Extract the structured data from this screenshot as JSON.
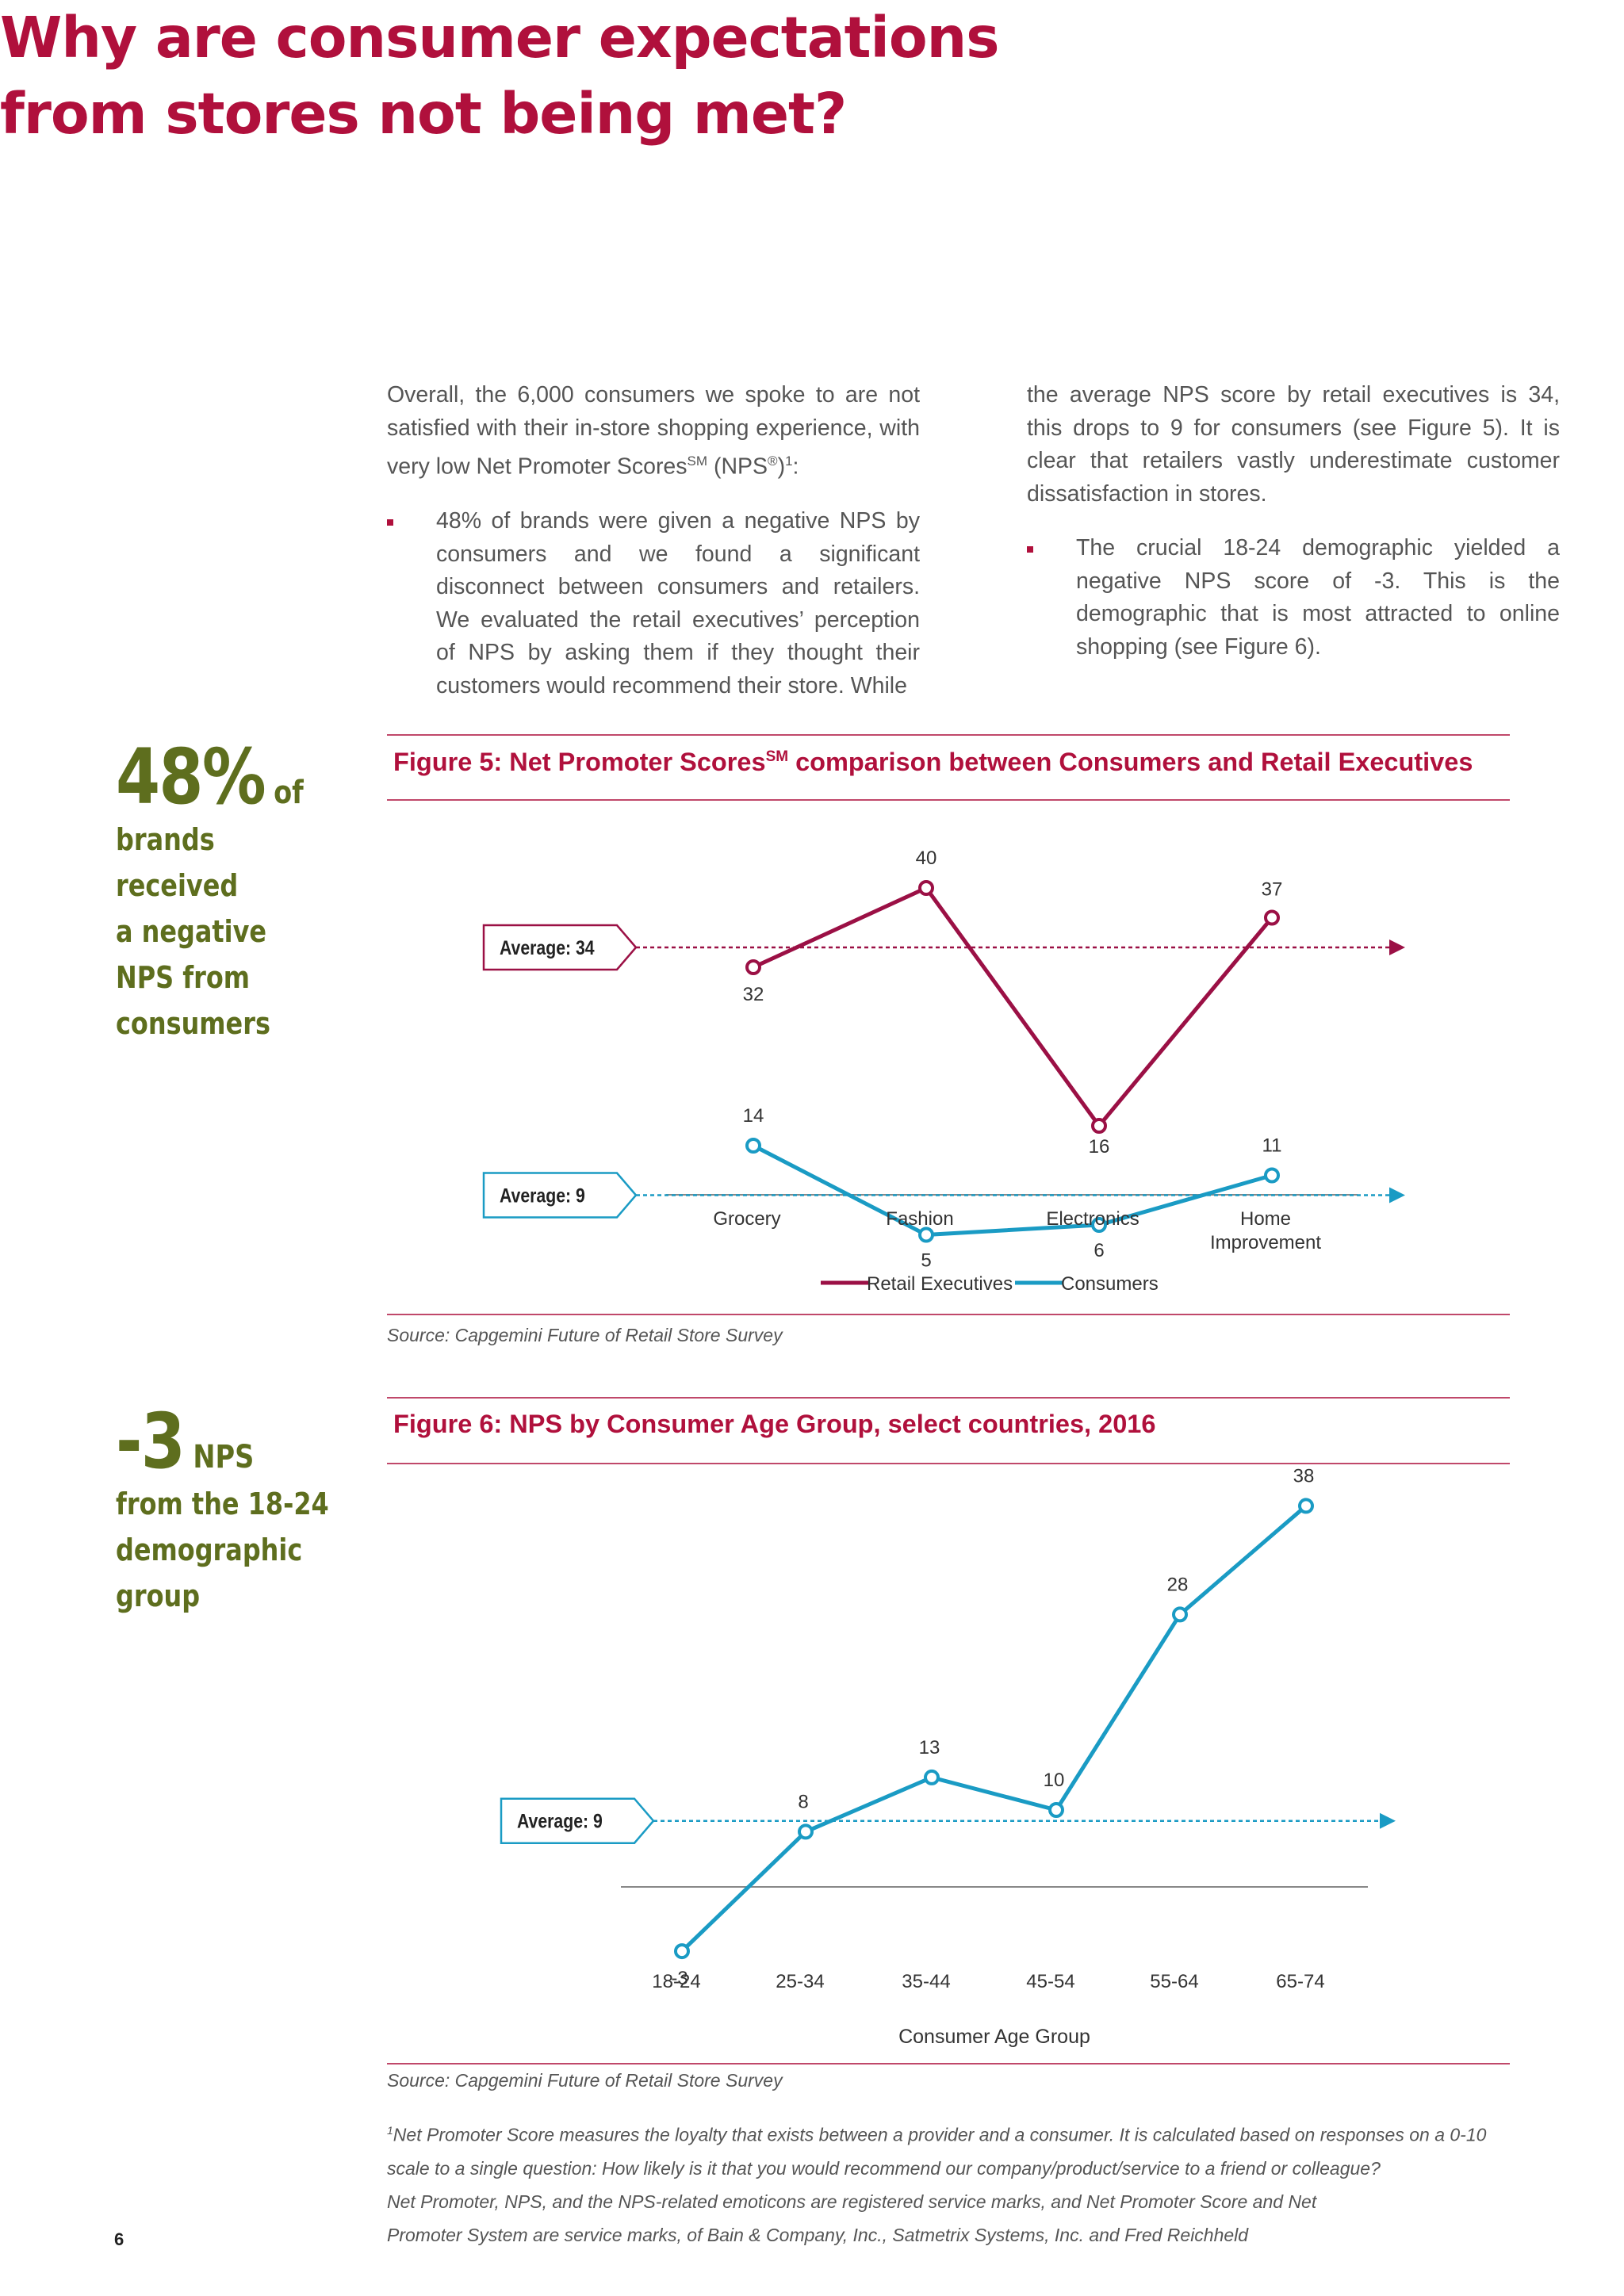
{
  "title": "Why are consumer expectations from stores not being met?",
  "col1": {
    "intro": "Overall, the 6,000 consumers we spoke to are not satisfied with their in-store shopping experience, with very low Net Promoter Scores",
    "sm": "SM",
    "nps": " (NPS",
    "reg": "®",
    "close": ")",
    "fn": "1",
    "colon": ":",
    "bullet1": "48% of brands were given a negative NPS by consumers and we found a significant disconnect between consumers and retailers. We evaluated the retail executives’ perception of NPS by asking them if they thought their customers would recommend their store. While"
  },
  "col2": {
    "para": "the average NPS score by retail executives is 34, this drops to 9 for consumers (see Figure 5). It is clear that retailers vastly underestimate customer dissatisfaction in stores.",
    "bullet2": "The crucial 18-24 demographic yielded a negative NPS score of -3. This is the demographic that is most attracted to online shopping (see Figure 6)."
  },
  "callout1": {
    "big": "48%",
    "suffix": "of",
    "text": [
      "brands received",
      "a negative",
      "NPS from",
      "consumers"
    ]
  },
  "callout2": {
    "big": "-3",
    "suffix": "NPS",
    "text": [
      "from the 18-24",
      "demographic",
      "group"
    ]
  },
  "fig5": {
    "title_pre": "Figure 5: Net Promoter Scores",
    "title_sm": "SM",
    "title_post": " comparison between Consumers and Retail Executives",
    "source": "Source: Capgemini Future of Retail Store Survey",
    "chart_data": {
      "type": "line",
      "categories": [
        "Grocery",
        "Fashion",
        "Electronics",
        "Home Improvement"
      ],
      "series": [
        {
          "name": "Retail Executives",
          "values": [
            32,
            40,
            16,
            37
          ],
          "color": "#9b1045"
        },
        {
          "name": "Consumers",
          "values": [
            14,
            5,
            6,
            11
          ],
          "color": "#1a9bc4"
        }
      ],
      "averages": [
        {
          "label": "Average: 34",
          "value": 34,
          "color": "#9b1045"
        },
        {
          "label": "Average: 9",
          "value": 9,
          "color": "#1a9bc4"
        }
      ],
      "ylim": [
        0,
        45
      ],
      "legend": "bottom-center",
      "grid": false
    }
  },
  "fig6": {
    "title": "Figure 6: NPS by Consumer Age Group, select countries, 2016",
    "source": "Source: Capgemini Future of Retail Store Survey",
    "chart_data": {
      "type": "line",
      "categories": [
        "18-24",
        "25-34",
        "35-44",
        "45-54",
        "55-64",
        "65-74"
      ],
      "series": [
        {
          "values": [
            -3,
            8,
            13,
            10,
            28,
            38
          ],
          "color": "#1a9bc4"
        }
      ],
      "averages": [
        {
          "label": "Average: 9",
          "value": 9,
          "color": "#1a9bc4"
        }
      ],
      "xlabel": "Consumer Age Group",
      "ylim": [
        -5,
        40
      ],
      "grid": false
    }
  },
  "footnote": {
    "marker": "1",
    "lines": [
      "Net Promoter Score measures the loyalty that exists between a provider and a consumer. It is calculated based on responses on a 0-10",
      "scale to a single question: How likely is it that you would recommend our company/product/service to a friend or colleague?",
      "Net Promoter, NPS, and the NPS-related emoticons are registered service marks, and Net Promoter Score and Net",
      "Promoter System are service marks, of Bain & Company, Inc., Satmetrix Systems, Inc. and Fred Reichheld"
    ]
  },
  "page_number": "6"
}
